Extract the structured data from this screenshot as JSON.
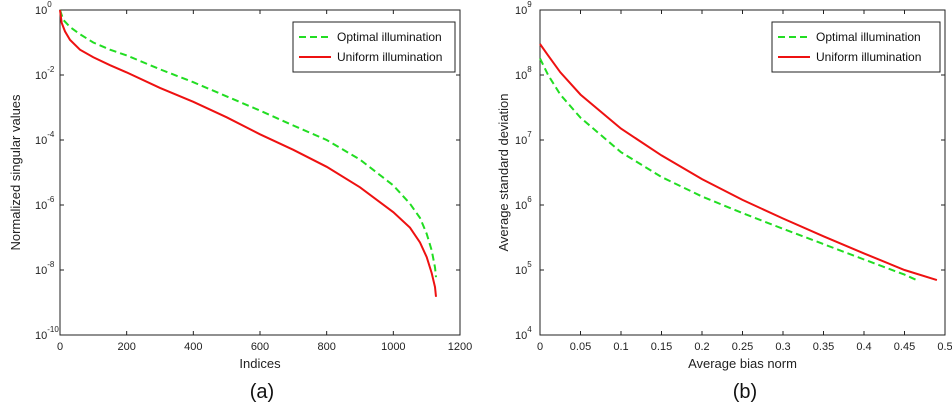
{
  "chart_data": [
    {
      "panel": "(a)",
      "type": "line",
      "xlabel": "Indices",
      "ylabel": "Normalized singular values",
      "xlim": [
        0,
        1200
      ],
      "ylim_log10": [
        -10,
        0
      ],
      "yscale": "log",
      "xticks": [
        "0",
        "200",
        "400",
        "600",
        "800",
        "1000",
        "1200"
      ],
      "yticks": [
        {
          "base": "10",
          "exp": "-10"
        },
        {
          "base": "10",
          "exp": "-8"
        },
        {
          "base": "10",
          "exp": "-6"
        },
        {
          "base": "10",
          "exp": "-4"
        },
        {
          "base": "10",
          "exp": "-2"
        },
        {
          "base": "10",
          "exp": "0"
        }
      ],
      "legend_position": "top-right",
      "series": [
        {
          "name": "Optimal illumination",
          "color": "#22dd22",
          "style": "dashed",
          "x": [
            0,
            10,
            30,
            60,
            100,
            150,
            200,
            300,
            400,
            500,
            600,
            700,
            800,
            900,
            1000,
            1050,
            1080,
            1100,
            1115,
            1125,
            1128
          ],
          "y": [
            1.0,
            0.5,
            0.3,
            0.18,
            0.1,
            0.06,
            0.04,
            0.015,
            0.006,
            0.0022,
            0.0008,
            0.00028,
            0.0001,
            2.5e-05,
            4e-06,
            1.1e-06,
            4e-07,
            1.3e-07,
            4e-08,
            1.2e-08,
            6e-09
          ]
        },
        {
          "name": "Uniform illumination",
          "color": "#ee1111",
          "style": "solid",
          "x": [
            0,
            5,
            15,
            30,
            60,
            100,
            150,
            200,
            300,
            400,
            500,
            600,
            700,
            800,
            900,
            1000,
            1050,
            1080,
            1100,
            1115,
            1125,
            1128
          ],
          "y": [
            1.0,
            0.4,
            0.22,
            0.12,
            0.06,
            0.035,
            0.02,
            0.012,
            0.004,
            0.0015,
            0.0005,
            0.00015,
            5e-05,
            1.5e-05,
            3.5e-06,
            6e-07,
            2e-07,
            7e-08,
            2.5e-08,
            8e-09,
            3e-09,
            1.5e-09
          ]
        }
      ]
    },
    {
      "panel": "(b)",
      "type": "line",
      "xlabel": "Average bias norm",
      "ylabel": "Average standard deviation",
      "xlim": [
        0,
        0.5
      ],
      "ylim_log10": [
        4,
        9
      ],
      "yscale": "log",
      "xticks": [
        "0",
        "0.05",
        "0.1",
        "0.15",
        "0.2",
        "0.25",
        "0.3",
        "0.35",
        "0.4",
        "0.45",
        "0.5"
      ],
      "yticks": [
        {
          "base": "10",
          "exp": "4"
        },
        {
          "base": "10",
          "exp": "5"
        },
        {
          "base": "10",
          "exp": "6"
        },
        {
          "base": "10",
          "exp": "7"
        },
        {
          "base": "10",
          "exp": "8"
        },
        {
          "base": "10",
          "exp": "9"
        }
      ],
      "legend_position": "top-right",
      "series": [
        {
          "name": "Optimal illumination",
          "color": "#22dd22",
          "style": "dashed",
          "x": [
            0,
            0.01,
            0.025,
            0.05,
            0.1,
            0.15,
            0.2,
            0.25,
            0.3,
            0.35,
            0.4,
            0.45,
            0.465
          ],
          "y": [
            180000000,
            100000000,
            50000000,
            22000000,
            6500000,
            2700000,
            1350000,
            750000,
            430000,
            250000,
            145000,
            85000,
            70000
          ]
        },
        {
          "name": "Uniform illumination",
          "color": "#ee1111",
          "style": "solid",
          "x": [
            0,
            0.01,
            0.025,
            0.05,
            0.1,
            0.15,
            0.2,
            0.25,
            0.3,
            0.35,
            0.4,
            0.45,
            0.49
          ],
          "y": [
            300000000,
            200000000,
            110000000,
            50000000,
            15000000,
            5800000,
            2500000,
            1200000,
            620000,
            330000,
            180000,
            100000,
            70000
          ]
        }
      ]
    }
  ]
}
